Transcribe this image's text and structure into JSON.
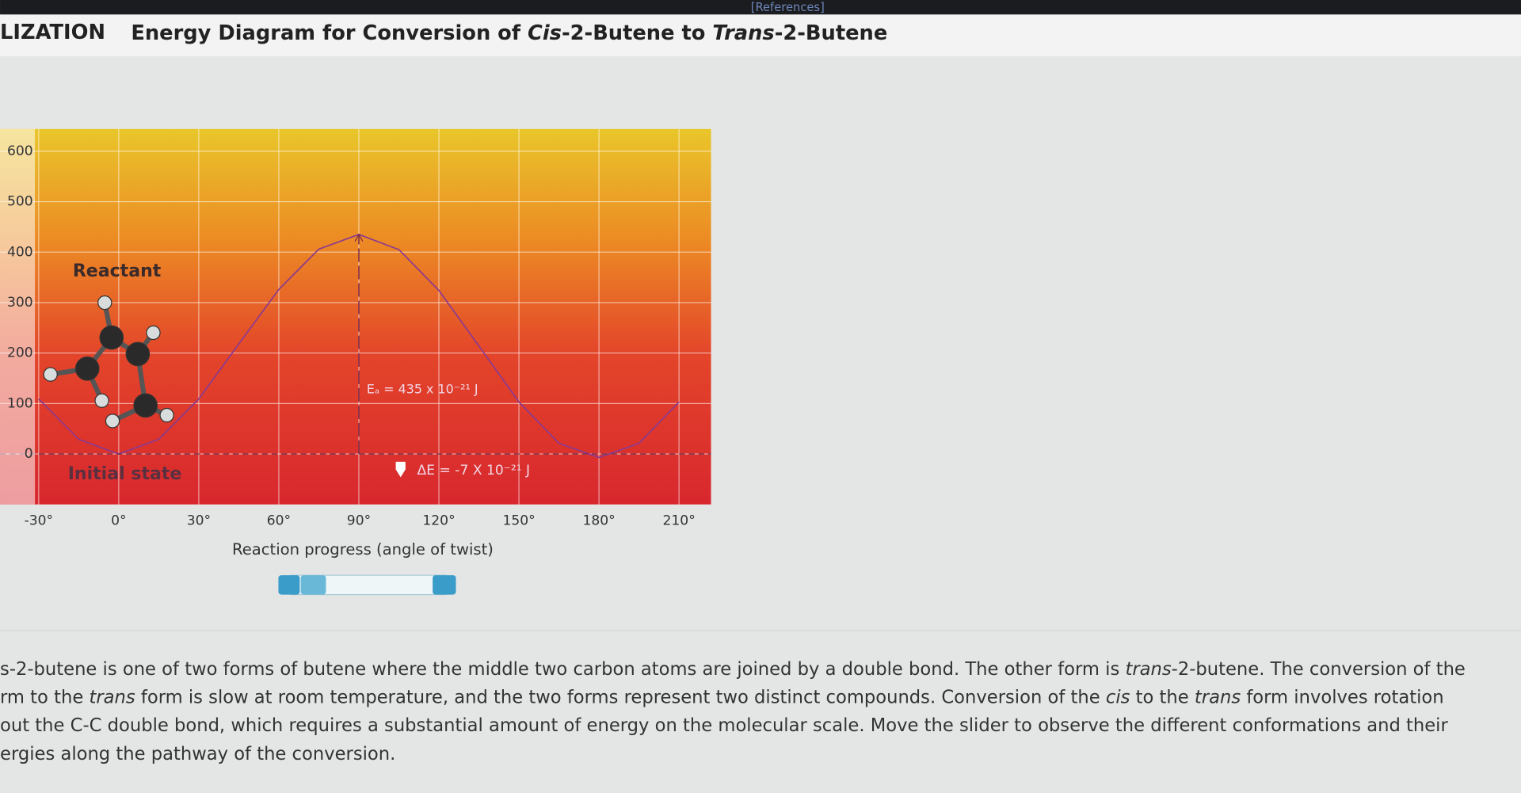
{
  "header": {
    "references": "[References]",
    "section": "LIZATION",
    "title": [
      "Energy Diagram for Conversion of ",
      "Cis",
      "-2-Butene to ",
      "Trans",
      "-2-Butene"
    ]
  },
  "chart_data": {
    "type": "line",
    "x_label": "Reaction progress (angle of twist)",
    "x": [
      -30,
      -15,
      0,
      15,
      30,
      45,
      60,
      75,
      90,
      105,
      120,
      135,
      150,
      165,
      180,
      195,
      210
    ],
    "series": [
      {
        "color": "#8b3a8f",
        "values": [
          109,
          29,
          0,
          29,
          109,
          218,
          326,
          406,
          435,
          405,
          324,
          214,
          103,
          21,
          -7,
          21,
          103
        ]
      }
    ],
    "xlim": [
      -44.5,
      222
    ],
    "ylim": [
      -100,
      644
    ],
    "xticks": [
      {
        "value": -30,
        "label": "-30°"
      },
      {
        "value": 0,
        "label": "0°"
      },
      {
        "value": 30,
        "label": "30°"
      },
      {
        "value": 60,
        "label": "60°"
      },
      {
        "value": 90,
        "label": "90°"
      },
      {
        "value": 120,
        "label": "120°"
      },
      {
        "value": 150,
        "label": "150°"
      },
      {
        "value": 180,
        "label": "180°"
      },
      {
        "value": 210,
        "label": "210°"
      }
    ],
    "yticks": [
      0,
      100,
      200,
      300,
      400,
      500,
      600
    ],
    "grid": true,
    "annotations": [
      "Reactant",
      "Initial state",
      "Eₐ = 435 x 10⁻²¹ J",
      "ΔE = -7 X 10⁻²¹ J"
    ]
  },
  "description": {
    "lines": [
      [
        "s-2-butene is one of two forms of butene where the middle two carbon atoms are joined by a double bond. The other form is ",
        "trans",
        "-2-butene. The conversion of the"
      ],
      [
        "rm to the ",
        "trans",
        " form is slow at room temperature, and the two forms represent two distinct compounds. Conversion of the ",
        "cis",
        " to the ",
        "trans",
        " form involves rotation"
      ],
      [
        "out the C-C double bond, which requires a substantial amount of energy on the molecular scale. Move the slider to observe the different conformations and their"
      ],
      [
        "ergies along the pathway of the conversion."
      ]
    ]
  }
}
